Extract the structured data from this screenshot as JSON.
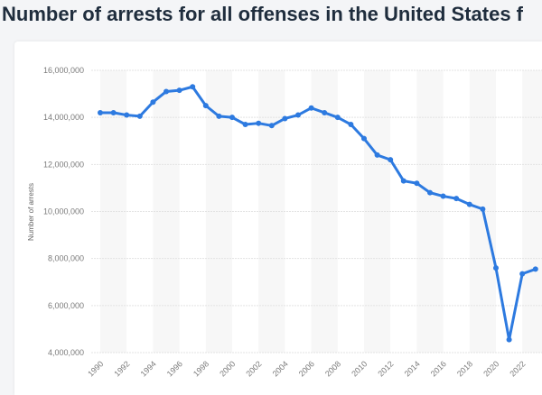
{
  "title": "Number of arrests for all offenses in the United States f",
  "chart_data": {
    "type": "line",
    "title": "Number of arrests for all offenses in the United States f",
    "xlabel": "",
    "ylabel": "Number of arrests",
    "x": [
      1990,
      1991,
      1992,
      1993,
      1994,
      1995,
      1996,
      1997,
      1998,
      1999,
      2000,
      2001,
      2002,
      2003,
      2004,
      2005,
      2006,
      2007,
      2008,
      2009,
      2010,
      2011,
      2012,
      2013,
      2014,
      2015,
      2016,
      2017,
      2018,
      2019,
      2020,
      2021,
      2022,
      2023
    ],
    "values": [
      14200000,
      14200000,
      14100000,
      14050000,
      14650000,
      15100000,
      15150000,
      15300000,
      14500000,
      14050000,
      14000000,
      13700000,
      13750000,
      13650000,
      13950000,
      14100000,
      14400000,
      14200000,
      14000000,
      13700000,
      13100000,
      12400000,
      12200000,
      11300000,
      11200000,
      10800000,
      10650000,
      10550000,
      10300000,
      10100000,
      7600000,
      4550000,
      7350000,
      7550000
    ],
    "ylim": [
      4000000,
      16000000
    ],
    "yticks": [
      "4,000,000",
      "6,000,000",
      "8,000,000",
      "10,000,000",
      "12,000,000",
      "14,000,000",
      "16,000,000"
    ],
    "xticks": [
      "1990",
      "1992",
      "1994",
      "1996",
      "1998",
      "2000",
      "2002",
      "2004",
      "2006",
      "2008",
      "2010",
      "2012",
      "2014",
      "2016",
      "2018",
      "2020",
      "2022"
    ],
    "grid": true,
    "line_color": "#2d7ae0"
  }
}
